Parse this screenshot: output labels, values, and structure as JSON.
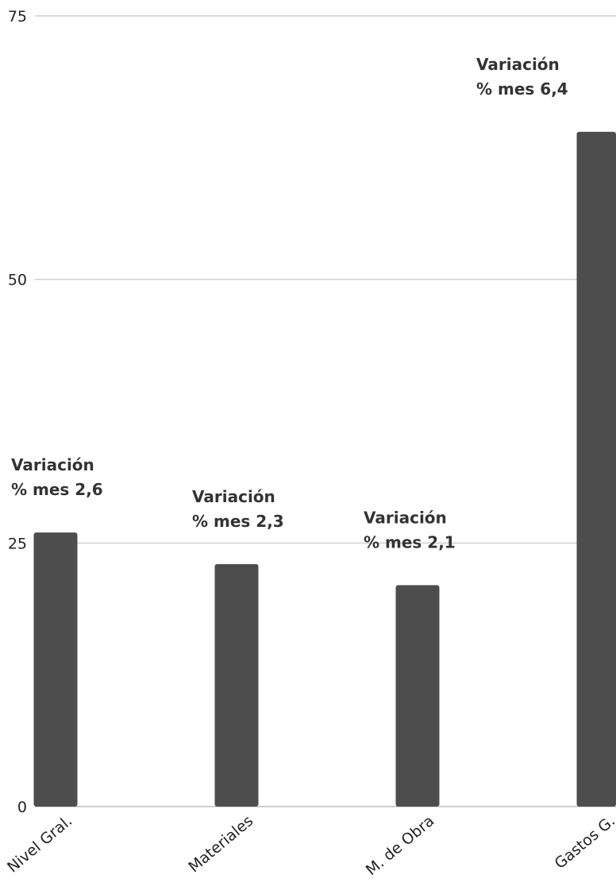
{
  "chart_data": {
    "type": "bar",
    "categories": [
      "Nivel Gral.",
      "Materiales",
      "M. de Obra",
      "Gastos G."
    ],
    "values": [
      26,
      23,
      21,
      64
    ],
    "data_labels": [
      [
        "Variación",
        "% mes 2,6"
      ],
      [
        "Variación",
        "% mes 2,3"
      ],
      [
        "Variación",
        "% mes 2,1"
      ],
      [
        "Variación",
        "% mes 6,4"
      ]
    ],
    "ylim": [
      0,
      75
    ],
    "yticks": [
      0,
      25,
      50,
      75
    ],
    "grid": true,
    "bar_color": "#4d4d4d",
    "grid_color": "#d0d0d0",
    "title": "",
    "xlabel": "",
    "ylabel": ""
  }
}
